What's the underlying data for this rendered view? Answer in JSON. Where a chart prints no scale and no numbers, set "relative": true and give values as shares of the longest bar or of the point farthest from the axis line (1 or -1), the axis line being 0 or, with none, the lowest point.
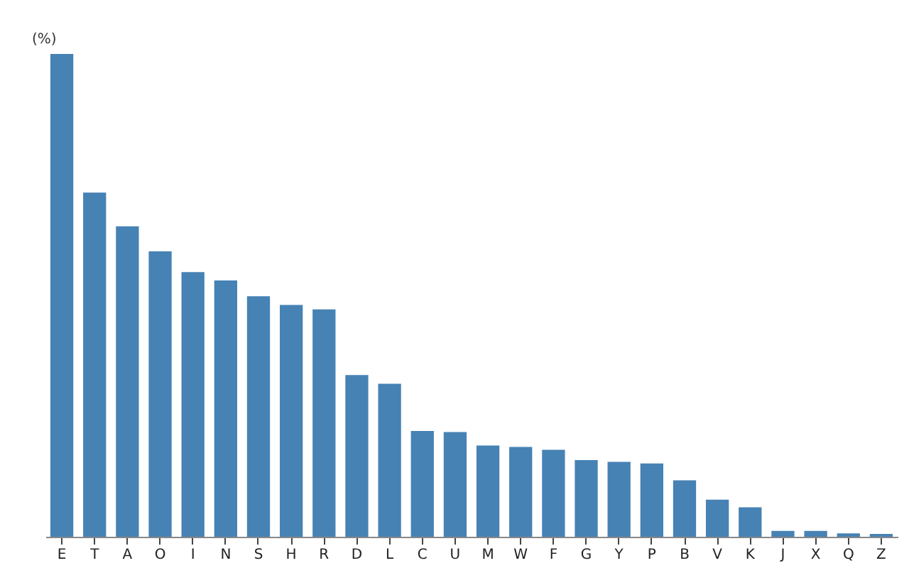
{
  "chart_data": {
    "type": "bar",
    "ylabel": "(%)",
    "relative": true,
    "color": "#4682b4",
    "categories": [
      "E",
      "T",
      "A",
      "O",
      "I",
      "N",
      "S",
      "H",
      "R",
      "D",
      "L",
      "C",
      "U",
      "M",
      "W",
      "F",
      "G",
      "Y",
      "P",
      "B",
      "V",
      "K",
      "J",
      "X",
      "Q",
      "Z"
    ],
    "values": [
      1,
      0.713,
      0.643,
      0.591,
      0.548,
      0.531,
      0.498,
      0.48,
      0.471,
      0.335,
      0.317,
      0.219,
      0.217,
      0.189,
      0.186,
      0.18,
      0.159,
      0.155,
      0.152,
      0.117,
      0.077,
      0.061,
      0.012,
      0.012,
      0.007,
      0.006
    ]
  }
}
